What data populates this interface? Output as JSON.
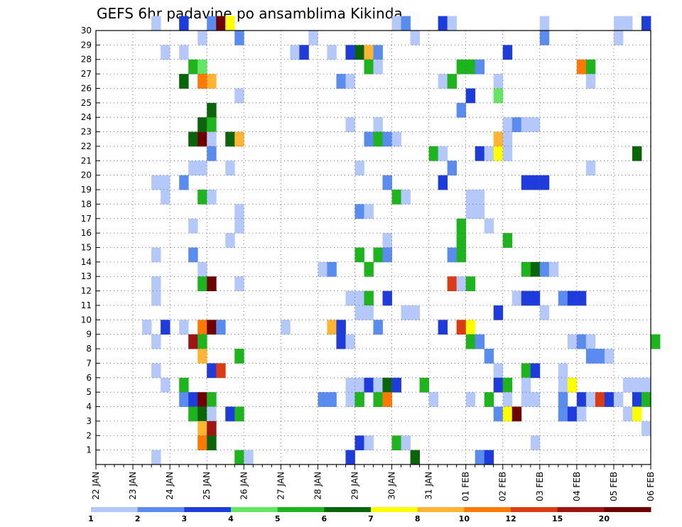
{
  "chart_data": {
    "type": "heatmap",
    "title": "GEFS 6hr padavine po ansamblima Kikinda",
    "xlabel": "",
    "ylabel": "",
    "x_tick_labels": [
      "22 JAN",
      "23 JAN",
      "24 JAN",
      "25 JAN",
      "26 JAN",
      "27 JAN",
      "28 JAN",
      "29 JAN",
      "30 JAN",
      "31 JAN",
      "01 FEB",
      "02 FEB",
      "03 FEB",
      "04 FEB",
      "05 FEB",
      "06 FEB"
    ],
    "x_range": [
      "22 JAN 00h",
      "06 FEB 00h"
    ],
    "y_tick_labels": [
      "1",
      "2",
      "3",
      "4",
      "5",
      "6",
      "7",
      "8",
      "9",
      "10",
      "11",
      "12",
      "13",
      "14",
      "15",
      "16",
      "17",
      "18",
      "19",
      "20",
      "21",
      "22",
      "23",
      "24",
      "25",
      "26",
      "27",
      "28",
      "29",
      "30"
    ],
    "y_range": [
      0,
      30
    ],
    "grid": true,
    "colorbar": {
      "labels": [
        "1",
        "2",
        "3",
        "4",
        "5",
        "6",
        "7",
        "8",
        "10",
        "12",
        "15",
        "20"
      ],
      "colors": [
        "#b4c8fa",
        "#5a8cf0",
        "#1e3cdc",
        "#64e664",
        "#1eb41e",
        "#0a640a",
        "#ffff00",
        "#ffb432",
        "#ff7800",
        "#dc3c14",
        "#a01414",
        "#6e0000"
      ]
    },
    "cell_value_key": "each cell = [member, forecast step (6 h steps from 22 JAN 00h), precipitation class index 0-11 matching colorbar]",
    "cells": [
      [
        30,
        6,
        0
      ],
      [
        30,
        9,
        2
      ],
      [
        30,
        12,
        1
      ],
      [
        30,
        13,
        11
      ],
      [
        30,
        14,
        6
      ],
      [
        30,
        32,
        0
      ],
      [
        30,
        33,
        1
      ],
      [
        30,
        37,
        2
      ],
      [
        30,
        38,
        0
      ],
      [
        30,
        48,
        0
      ],
      [
        30,
        56,
        0
      ],
      [
        30,
        57,
        0
      ],
      [
        30,
        59,
        2
      ],
      [
        29,
        11,
        0
      ],
      [
        29,
        15,
        1
      ],
      [
        29,
        23,
        0
      ],
      [
        29,
        34,
        0
      ],
      [
        29,
        48,
        1
      ],
      [
        29,
        56,
        0
      ],
      [
        28,
        7,
        0
      ],
      [
        28,
        9,
        0
      ],
      [
        28,
        21,
        0
      ],
      [
        28,
        22,
        2
      ],
      [
        28,
        25,
        0
      ],
      [
        28,
        27,
        2
      ],
      [
        28,
        28,
        5
      ],
      [
        28,
        29,
        7
      ],
      [
        28,
        30,
        1
      ],
      [
        28,
        44,
        2
      ],
      [
        27,
        10,
        4
      ],
      [
        27,
        11,
        3
      ],
      [
        27,
        29,
        4
      ],
      [
        27,
        30,
        0
      ],
      [
        27,
        39,
        4
      ],
      [
        27,
        40,
        4
      ],
      [
        27,
        41,
        1
      ],
      [
        27,
        52,
        8
      ],
      [
        27,
        53,
        4
      ],
      [
        26,
        9,
        5
      ],
      [
        26,
        11,
        8
      ],
      [
        26,
        12,
        7
      ],
      [
        26,
        26,
        1
      ],
      [
        26,
        27,
        0
      ],
      [
        26,
        37,
        0
      ],
      [
        26,
        38,
        4
      ],
      [
        26,
        43,
        0
      ],
      [
        26,
        53,
        0
      ],
      [
        25,
        15,
        0
      ],
      [
        25,
        40,
        2
      ],
      [
        25,
        43,
        3
      ],
      [
        24,
        12,
        5
      ],
      [
        24,
        39,
        1
      ],
      [
        23,
        11,
        5
      ],
      [
        23,
        12,
        4
      ],
      [
        23,
        27,
        0
      ],
      [
        23,
        30,
        0
      ],
      [
        23,
        44,
        0
      ],
      [
        23,
        45,
        1
      ],
      [
        23,
        46,
        0
      ],
      [
        23,
        47,
        0
      ],
      [
        22,
        10,
        5
      ],
      [
        22,
        11,
        11
      ],
      [
        22,
        12,
        0
      ],
      [
        22,
        14,
        5
      ],
      [
        22,
        15,
        7
      ],
      [
        22,
        29,
        1
      ],
      [
        22,
        30,
        4
      ],
      [
        22,
        31,
        1
      ],
      [
        22,
        32,
        0
      ],
      [
        22,
        43,
        7
      ],
      [
        22,
        44,
        0
      ],
      [
        21,
        12,
        1
      ],
      [
        21,
        36,
        4
      ],
      [
        21,
        37,
        0
      ],
      [
        21,
        41,
        2
      ],
      [
        21,
        42,
        0
      ],
      [
        21,
        43,
        6
      ],
      [
        21,
        44,
        0
      ],
      [
        21,
        58,
        5
      ],
      [
        20,
        10,
        0
      ],
      [
        20,
        11,
        0
      ],
      [
        20,
        14,
        0
      ],
      [
        20,
        28,
        0
      ],
      [
        20,
        38,
        1
      ],
      [
        20,
        53,
        0
      ],
      [
        19,
        6,
        0
      ],
      [
        19,
        7,
        0
      ],
      [
        19,
        9,
        1
      ],
      [
        19,
        31,
        1
      ],
      [
        19,
        37,
        2
      ],
      [
        19,
        46,
        2
      ],
      [
        19,
        47,
        2
      ],
      [
        19,
        48,
        2
      ],
      [
        18,
        7,
        0
      ],
      [
        18,
        11,
        4
      ],
      [
        18,
        12,
        0
      ],
      [
        18,
        32,
        4
      ],
      [
        18,
        33,
        0
      ],
      [
        18,
        40,
        0
      ],
      [
        18,
        41,
        0
      ],
      [
        17,
        15,
        0
      ],
      [
        17,
        28,
        1
      ],
      [
        17,
        29,
        0
      ],
      [
        17,
        40,
        0
      ],
      [
        17,
        41,
        0
      ],
      [
        16,
        10,
        0
      ],
      [
        16,
        15,
        0
      ],
      [
        16,
        39,
        4
      ],
      [
        16,
        42,
        0
      ],
      [
        15,
        14,
        0
      ],
      [
        15,
        31,
        0
      ],
      [
        15,
        39,
        4
      ],
      [
        15,
        44,
        4
      ],
      [
        14,
        6,
        0
      ],
      [
        14,
        10,
        1
      ],
      [
        14,
        28,
        4
      ],
      [
        14,
        30,
        4
      ],
      [
        14,
        31,
        1
      ],
      [
        14,
        38,
        1
      ],
      [
        14,
        39,
        4
      ],
      [
        13,
        11,
        0
      ],
      [
        13,
        24,
        0
      ],
      [
        13,
        25,
        1
      ],
      [
        13,
        29,
        4
      ],
      [
        13,
        46,
        4
      ],
      [
        13,
        47,
        5
      ],
      [
        13,
        48,
        1
      ],
      [
        13,
        49,
        0
      ],
      [
        12,
        6,
        0
      ],
      [
        12,
        11,
        4
      ],
      [
        12,
        12,
        11
      ],
      [
        12,
        15,
        0
      ],
      [
        12,
        38,
        9
      ],
      [
        12,
        39,
        0
      ],
      [
        12,
        40,
        4
      ],
      [
        11,
        6,
        0
      ],
      [
        11,
        27,
        0
      ],
      [
        11,
        28,
        0
      ],
      [
        11,
        29,
        4
      ],
      [
        11,
        31,
        2
      ],
      [
        11,
        45,
        0
      ],
      [
        11,
        46,
        2
      ],
      [
        11,
        47,
        2
      ],
      [
        11,
        50,
        1
      ],
      [
        11,
        51,
        2
      ],
      [
        11,
        52,
        2
      ],
      [
        10,
        28,
        0
      ],
      [
        10,
        29,
        0
      ],
      [
        10,
        33,
        0
      ],
      [
        10,
        34,
        0
      ],
      [
        10,
        43,
        2
      ],
      [
        10,
        48,
        0
      ],
      [
        9,
        5,
        0
      ],
      [
        9,
        7,
        2
      ],
      [
        9,
        9,
        0
      ],
      [
        9,
        11,
        8
      ],
      [
        9,
        12,
        11
      ],
      [
        9,
        13,
        1
      ],
      [
        9,
        20,
        0
      ],
      [
        9,
        25,
        7
      ],
      [
        9,
        26,
        2
      ],
      [
        9,
        30,
        1
      ],
      [
        9,
        37,
        2
      ],
      [
        9,
        39,
        9
      ],
      [
        9,
        40,
        6
      ],
      [
        8,
        6,
        0
      ],
      [
        8,
        10,
        10
      ],
      [
        8,
        11,
        4
      ],
      [
        8,
        26,
        2
      ],
      [
        8,
        27,
        0
      ],
      [
        8,
        40,
        4
      ],
      [
        8,
        41,
        1
      ],
      [
        8,
        51,
        0
      ],
      [
        8,
        52,
        1
      ],
      [
        8,
        53,
        0
      ],
      [
        8,
        60,
        4
      ],
      [
        7,
        11,
        7
      ],
      [
        7,
        15,
        4
      ],
      [
        7,
        42,
        1
      ],
      [
        7,
        53,
        1
      ],
      [
        7,
        54,
        1
      ],
      [
        7,
        55,
        0
      ],
      [
        6,
        6,
        0
      ],
      [
        6,
        12,
        2
      ],
      [
        6,
        13,
        9
      ],
      [
        6,
        43,
        0
      ],
      [
        6,
        46,
        4
      ],
      [
        6,
        47,
        2
      ],
      [
        6,
        50,
        0
      ],
      [
        5,
        7,
        0
      ],
      [
        5,
        9,
        4
      ],
      [
        5,
        27,
        0
      ],
      [
        5,
        28,
        0
      ],
      [
        5,
        29,
        2
      ],
      [
        5,
        30,
        0
      ],
      [
        5,
        31,
        5
      ],
      [
        5,
        32,
        2
      ],
      [
        5,
        35,
        4
      ],
      [
        5,
        43,
        2
      ],
      [
        5,
        44,
        4
      ],
      [
        5,
        46,
        0
      ],
      [
        5,
        50,
        0
      ],
      [
        5,
        51,
        6
      ],
      [
        5,
        57,
        0
      ],
      [
        5,
        58,
        0
      ],
      [
        5,
        59,
        0
      ],
      [
        4,
        9,
        1
      ],
      [
        4,
        10,
        2
      ],
      [
        4,
        11,
        11
      ],
      [
        4,
        12,
        4
      ],
      [
        4,
        24,
        1
      ],
      [
        4,
        25,
        1
      ],
      [
        4,
        27,
        0
      ],
      [
        4,
        28,
        4
      ],
      [
        4,
        30,
        4
      ],
      [
        4,
        31,
        8
      ],
      [
        4,
        36,
        0
      ],
      [
        4,
        40,
        0
      ],
      [
        4,
        42,
        4
      ],
      [
        4,
        44,
        0
      ],
      [
        4,
        46,
        0
      ],
      [
        4,
        47,
        0
      ],
      [
        4,
        50,
        1
      ],
      [
        4,
        52,
        2
      ],
      [
        4,
        53,
        0
      ],
      [
        4,
        54,
        9
      ],
      [
        4,
        55,
        2
      ],
      [
        4,
        56,
        0
      ],
      [
        4,
        58,
        2
      ],
      [
        4,
        59,
        4
      ],
      [
        3,
        10,
        4
      ],
      [
        3,
        11,
        5
      ],
      [
        3,
        12,
        0
      ],
      [
        3,
        14,
        2
      ],
      [
        3,
        15,
        4
      ],
      [
        3,
        43,
        1
      ],
      [
        3,
        44,
        6
      ],
      [
        3,
        45,
        11
      ],
      [
        3,
        50,
        1
      ],
      [
        3,
        51,
        2
      ],
      [
        3,
        52,
        0
      ],
      [
        3,
        57,
        0
      ],
      [
        3,
        58,
        6
      ],
      [
        2,
        11,
        7
      ],
      [
        2,
        12,
        10
      ],
      [
        2,
        59,
        0
      ],
      [
        1,
        11,
        8
      ],
      [
        1,
        12,
        5
      ],
      [
        1,
        28,
        2
      ],
      [
        1,
        29,
        0
      ],
      [
        1,
        32,
        4
      ],
      [
        1,
        33,
        0
      ],
      [
        1,
        47,
        0
      ],
      [
        0,
        6,
        0
      ],
      [
        0,
        15,
        4
      ],
      [
        0,
        16,
        0
      ],
      [
        0,
        27,
        2
      ],
      [
        0,
        34,
        5
      ],
      [
        0,
        41,
        1
      ],
      [
        0,
        42,
        2
      ]
    ]
  }
}
